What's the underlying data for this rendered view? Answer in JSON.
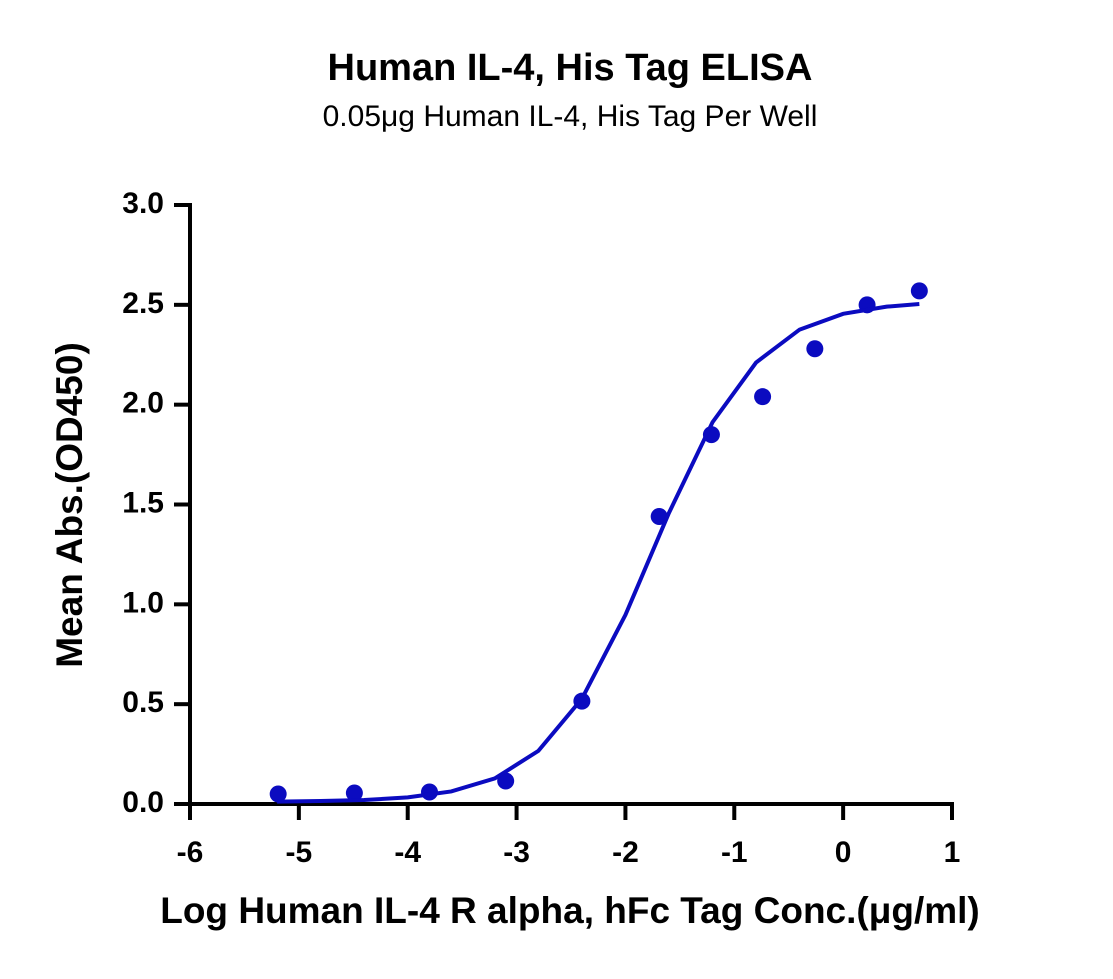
{
  "chart_data": {
    "type": "scatter",
    "title": "Human IL-4, His Tag ELISA",
    "subtitle": "0.05μg Human IL-4, His Tag Per Well",
    "x_label": "Log Human IL-4 R alpha, hFc Tag Conc.(μg/ml)",
    "y_label": "Mean Abs.(OD450)",
    "xlim": [
      -6,
      1
    ],
    "xticks": [
      -6,
      -5,
      -4,
      -3,
      -2,
      -1,
      0,
      1
    ],
    "ylim": [
      0,
      3.0
    ],
    "yticks": [
      {
        "value": 0,
        "label": "0.0"
      },
      {
        "value": 0.5,
        "label": "0.5"
      },
      {
        "value": 1,
        "label": "1.0"
      },
      {
        "value": 1.5,
        "label": "1.5"
      },
      {
        "value": 2,
        "label": "2.0"
      },
      {
        "value": 2.5,
        "label": "2.5"
      },
      {
        "value": 3,
        "label": "3.0"
      }
    ],
    "series": [
      {
        "type": "scatter",
        "color": "#0b0bc0",
        "x": [
          -5.19,
          -4.49,
          -3.8,
          -3.1,
          -2.4,
          -1.69,
          -1.21,
          -0.74,
          -0.26,
          0.22,
          0.7
        ],
        "values": [
          0.05,
          0.055,
          0.06,
          0.115,
          0.515,
          1.44,
          1.85,
          2.04,
          2.28,
          2.5,
          2.57
        ]
      },
      {
        "type": "line",
        "color": "#0b0bc0",
        "x": [
          -5.2,
          -4.8,
          -4.4,
          -4.0,
          -3.6,
          -3.2,
          -2.8,
          -2.4,
          -2.0,
          -1.6,
          -1.2,
          -0.8,
          -0.4,
          0.0,
          0.4,
          0.7
        ],
        "values": [
          0.012,
          0.015,
          0.02,
          0.033,
          0.063,
          0.128,
          0.266,
          0.527,
          0.947,
          1.458,
          1.912,
          2.211,
          2.376,
          2.455,
          2.491,
          2.504
        ]
      }
    ]
  }
}
